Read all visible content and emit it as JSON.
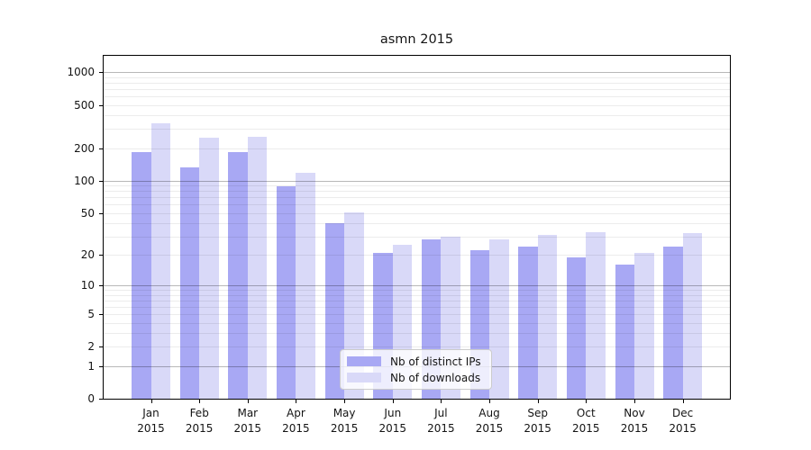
{
  "title": "asmn 2015",
  "colors": {
    "bar_distinct_ips": "#a8a8f4",
    "bar_downloads": "#d9d9f8",
    "grid_major": "rgba(0,0,0,0.28)",
    "grid_minor": "rgba(0,0,0,0.075)",
    "axis": "#000000",
    "text": "#141414",
    "background": "#ffffff"
  },
  "legend": {
    "items": [
      {
        "label": "Nb of distinct IPs",
        "color": "#a8a8f4"
      },
      {
        "label": "Nb of downloads",
        "color": "#d9d9f8"
      }
    ]
  },
  "chart_data": {
    "type": "bar",
    "title": "asmn 2015",
    "categories": [
      "Jan 2015",
      "Feb 2015",
      "Mar 2015",
      "Apr 2015",
      "May 2015",
      "Jun 2015",
      "Jul 2015",
      "Aug 2015",
      "Sep 2015",
      "Oct 2015",
      "Nov 2015",
      "Dec 2015"
    ],
    "series": [
      {
        "name": "Nb of distinct IPs",
        "color": "#a8a8f4",
        "values": [
          184,
          134,
          184,
          89,
          40,
          21,
          28,
          22,
          24,
          19,
          16,
          24
        ]
      },
      {
        "name": "Nb of downloads",
        "color": "#d9d9f8",
        "values": [
          340,
          248,
          253,
          118,
          51,
          25,
          30,
          28,
          31,
          33,
          21,
          32
        ]
      }
    ],
    "xlabel": "",
    "ylabel": "",
    "y_ticks": [
      0,
      1,
      2,
      5,
      10,
      20,
      50,
      100,
      200,
      500,
      1000
    ],
    "y_scale": "log10(value+1)",
    "ylim": [
      0,
      1417
    ],
    "grid": "on, drawn above bars; major lines at 1/10/100/1000, minor at 2-9 per decade",
    "legend_position": "inside plot, lower center"
  }
}
